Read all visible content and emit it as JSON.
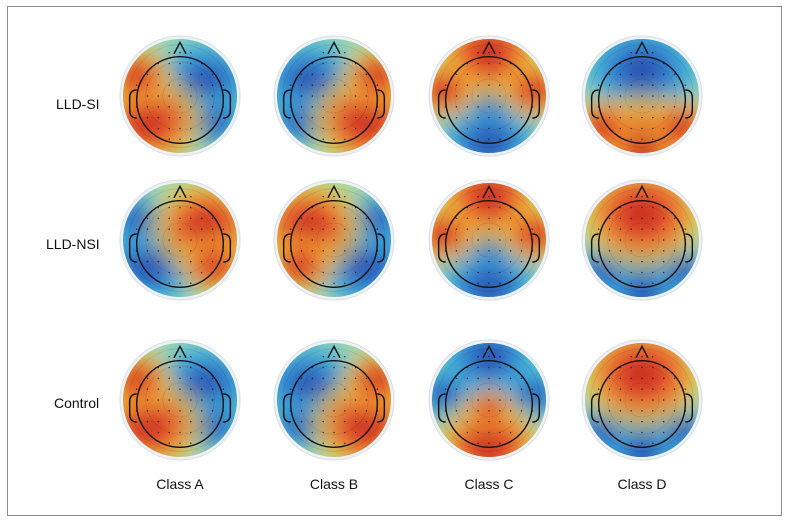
{
  "figure": {
    "rows": [
      {
        "label": "LLD-SI",
        "maps": [
          {
            "pattern": "A",
            "invert": false
          },
          {
            "pattern": "B",
            "invert": false
          },
          {
            "pattern": "C",
            "invert": false
          },
          {
            "pattern": "D",
            "invert": false
          }
        ]
      },
      {
        "label": "LLD-NSI",
        "maps": [
          {
            "pattern": "A",
            "invert": true
          },
          {
            "pattern": "B",
            "invert": true
          },
          {
            "pattern": "C",
            "invert": false
          },
          {
            "pattern": "D",
            "invert": true
          }
        ]
      },
      {
        "label": "Control",
        "maps": [
          {
            "pattern": "A",
            "invert": false
          },
          {
            "pattern": "B",
            "invert": false
          },
          {
            "pattern": "C",
            "invert": true
          },
          {
            "pattern": "D",
            "invert": true
          }
        ]
      }
    ],
    "columns": [
      "Class A",
      "Class B",
      "Class C",
      "Class D"
    ],
    "colors": [
      "#2b2f9e",
      "#2f7fd0",
      "#3fb8e0",
      "#9fd8b0",
      "#f2e23c",
      "#f39a2a",
      "#e5432a",
      "#b3201c"
    ]
  }
}
